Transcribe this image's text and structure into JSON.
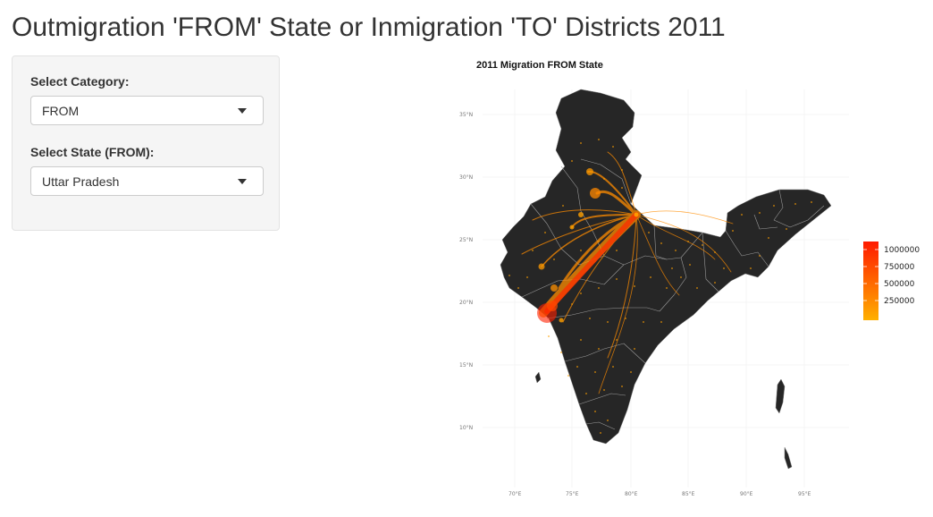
{
  "app": {
    "title": "Outmigration 'FROM' State or Inmigration 'TO' Districts 2011"
  },
  "sidebar": {
    "category": {
      "label": "Select Category:",
      "value": "FROM"
    },
    "state": {
      "label": "Select State (FROM):",
      "value": "Uttar Pradesh"
    }
  },
  "map": {
    "title": "2011 Migration FROM State",
    "lat_ticks": [
      "35°N",
      "30°N",
      "25°N",
      "20°N",
      "15°N",
      "10°N"
    ],
    "lon_ticks": [
      "70°E",
      "75°E",
      "80°E",
      "85°E",
      "90°E",
      "95°E"
    ],
    "legend": {
      "labels": [
        "1000000",
        "750000",
        "500000",
        "250000"
      ],
      "color_low": "#ffb000",
      "color_high": "#ff1a00"
    },
    "colors": {
      "land": "#262626",
      "borders": "#9a9a9a",
      "flow": "#ff8c00",
      "flow_strong": "#ff2a00",
      "origin_point": "#ff9a00"
    }
  }
}
